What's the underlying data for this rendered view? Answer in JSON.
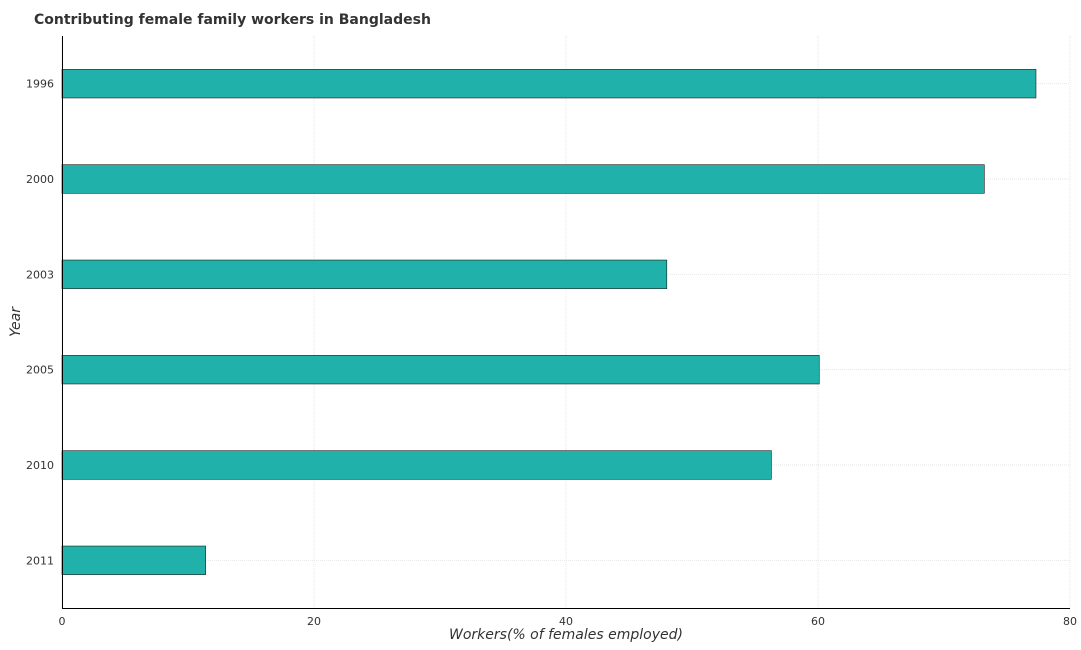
{
  "chart_data": {
    "type": "bar",
    "orientation": "horizontal",
    "title": "Contributing female family workers in Bangladesh",
    "xlabel": "Workers(% of females employed)",
    "ylabel": "Year",
    "categories": [
      "1996",
      "2000",
      "2003",
      "2005",
      "2010",
      "2011"
    ],
    "values": [
      77.3,
      73.2,
      48.0,
      60.1,
      56.3,
      11.4
    ],
    "xlim": [
      0,
      80
    ],
    "xticks": [
      0,
      20,
      40,
      60,
      80
    ],
    "grid": true,
    "bar_color": "#20b2aa"
  }
}
